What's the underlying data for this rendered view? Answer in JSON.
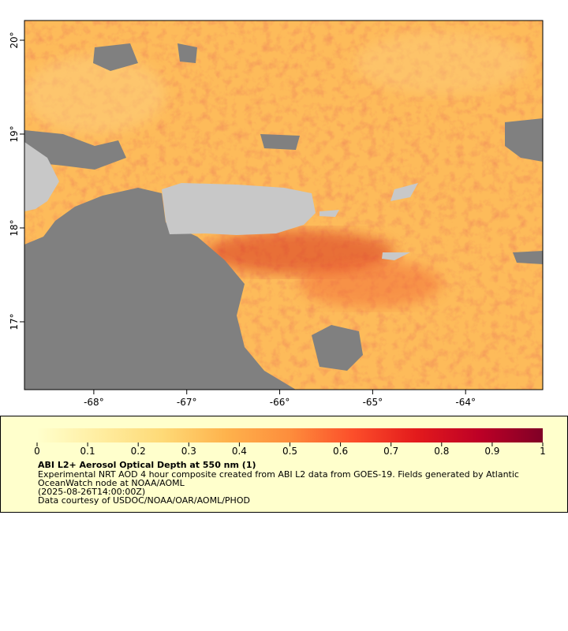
{
  "map": {
    "xlim": [
      -68.746,
      -63.17
    ],
    "ylim": [
      16.277,
      20.21
    ],
    "xticks": [
      {
        "value": -68,
        "label": "-68°"
      },
      {
        "value": -67,
        "label": "-67°"
      },
      {
        "value": -66,
        "label": "-66°"
      },
      {
        "value": -65,
        "label": "-65°"
      },
      {
        "value": -64,
        "label": "-64°"
      }
    ],
    "yticks": [
      {
        "value": 17,
        "label": "17°"
      },
      {
        "value": 18,
        "label": "18°"
      },
      {
        "value": 19,
        "label": "19°"
      },
      {
        "value": 20,
        "label": "20°"
      }
    ]
  },
  "colorbar": {
    "range": [
      0,
      1
    ],
    "ticks": [
      0,
      0.1,
      0.2,
      0.3,
      0.4,
      0.5,
      0.6,
      0.7,
      0.8,
      0.9,
      1
    ],
    "colors": [
      "#ffffcc",
      "#ffeda0",
      "#fed976",
      "#feb24c",
      "#fd8d3c",
      "#fc4e2a",
      "#e31a1c",
      "#bd0026",
      "#800026"
    ]
  },
  "legend": {
    "title": "ABI L2+ Aerosol Optical Depth at 550 nm (1)",
    "lines": [
      "Experimental NRT AOD 4 hour composite created from ABI L2 data from GOES-19. Fields generated by Atlantic",
      "OceanWatch node at NOAA/AOML",
      "(2025-08-26T14:00:00Z)",
      "Data courtesy of USDOC/NOAA/OAR/AOML/PHOD"
    ]
  }
}
